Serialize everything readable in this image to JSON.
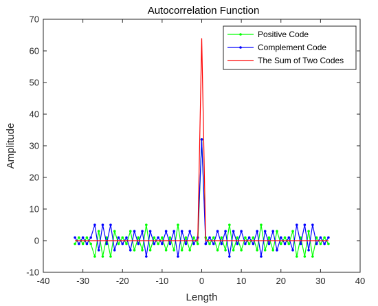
{
  "chart_data": {
    "type": "line",
    "title": "Autocorrelation Function",
    "xlabel": "Length",
    "ylabel": "Amplitude",
    "xlim": [
      -40,
      40
    ],
    "ylim": [
      -10,
      70
    ],
    "xticks": [
      -40,
      -30,
      -20,
      -10,
      0,
      10,
      20,
      30,
      40
    ],
    "yticks": [
      -10,
      0,
      10,
      20,
      30,
      40,
      50,
      60,
      70
    ],
    "grid": false,
    "legend_position": "top-right",
    "x": [
      -32,
      -31,
      -30,
      -29,
      -28,
      -27,
      -26,
      -25,
      -24,
      -23,
      -22,
      -21,
      -20,
      -19,
      -18,
      -17,
      -16,
      -15,
      -14,
      -13,
      -12,
      -11,
      -10,
      -9,
      -8,
      -7,
      -6,
      -5,
      -4,
      -3,
      -2,
      -1,
      0,
      1,
      2,
      3,
      4,
      5,
      6,
      7,
      8,
      9,
      10,
      11,
      12,
      13,
      14,
      15,
      16,
      17,
      18,
      19,
      20,
      21,
      22,
      23,
      24,
      25,
      26,
      27,
      28,
      29,
      30,
      31,
      32
    ],
    "series": [
      {
        "name": "Positive Code",
        "color": "#00ff00",
        "marker": "dot",
        "values": [
          -1,
          1,
          -1,
          1,
          -1,
          -5,
          3,
          -5,
          1,
          -5,
          3,
          -1,
          1,
          -1,
          3,
          -3,
          1,
          -3,
          5,
          -3,
          1,
          -1,
          1,
          -3,
          1,
          -3,
          5,
          -3,
          1,
          -3,
          1,
          -1,
          32,
          1,
          -1,
          1,
          -3,
          1,
          -3,
          5,
          -3,
          1,
          -3,
          1,
          -1,
          1,
          -3,
          5,
          -3,
          1,
          -3,
          3,
          -1,
          1,
          -1,
          3,
          -5,
          1,
          -5,
          3,
          -5,
          1,
          -1,
          1,
          -1
        ]
      },
      {
        "name": "Complement Code",
        "color": "#0000ff",
        "marker": "dot",
        "values": [
          1,
          -1,
          1,
          -1,
          1,
          5,
          -3,
          5,
          -1,
          5,
          -3,
          1,
          -1,
          1,
          -3,
          3,
          -1,
          3,
          -5,
          3,
          -1,
          1,
          -1,
          3,
          -1,
          3,
          -5,
          3,
          -1,
          3,
          -1,
          1,
          32,
          -1,
          1,
          -1,
          3,
          -1,
          3,
          -5,
          3,
          -1,
          3,
          -1,
          1,
          -1,
          3,
          -5,
          3,
          -1,
          3,
          -3,
          1,
          -1,
          1,
          -3,
          5,
          -1,
          5,
          -3,
          5,
          -1,
          1,
          -1,
          1
        ]
      },
      {
        "name": "The Sum of Two Codes",
        "color": "#ff0000",
        "marker": "none",
        "values": [
          0,
          0,
          0,
          0,
          0,
          0,
          0,
          0,
          0,
          0,
          0,
          0,
          0,
          0,
          0,
          0,
          0,
          0,
          0,
          0,
          0,
          0,
          0,
          0,
          0,
          0,
          0,
          0,
          0,
          0,
          0,
          0,
          64,
          0,
          0,
          0,
          0,
          0,
          0,
          0,
          0,
          0,
          0,
          0,
          0,
          0,
          0,
          0,
          0,
          0,
          0,
          0,
          0,
          0,
          0,
          0,
          0,
          0,
          0,
          0,
          0,
          0,
          0,
          0,
          0
        ]
      }
    ]
  }
}
